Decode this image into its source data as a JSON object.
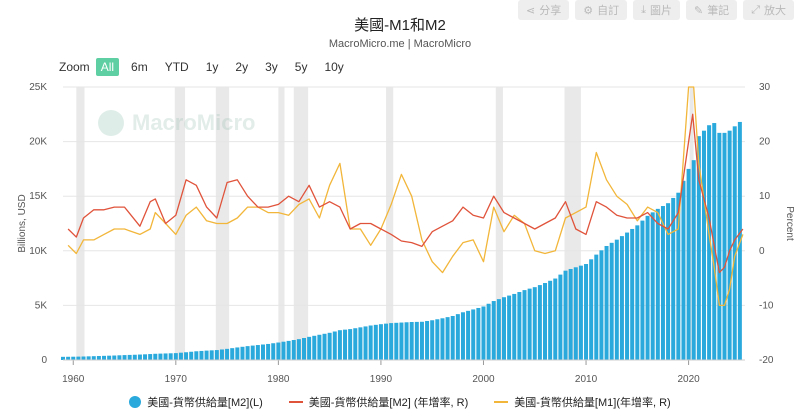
{
  "title": "美國-M1和M2",
  "subtitle": "MacroMicro.me | MacroMicro",
  "toolbar": [
    {
      "icon": "share-icon",
      "glyph": "⋖",
      "label": "分享"
    },
    {
      "icon": "settings-icon",
      "glyph": "⚙",
      "label": "自訂"
    },
    {
      "icon": "download-icon",
      "glyph": "⤓",
      "label": "圖片"
    },
    {
      "icon": "edit-icon",
      "glyph": "✎",
      "label": "筆記"
    },
    {
      "icon": "expand-icon",
      "glyph": "⤢",
      "label": "放大"
    }
  ],
  "zoom": {
    "label": "Zoom",
    "options": [
      "All",
      "6m",
      "YTD",
      "1y",
      "2y",
      "3y",
      "5y",
      "10y"
    ],
    "selected": "All"
  },
  "watermark": "MacroMicro",
  "colors": {
    "m2_bar": "#2aa9dc",
    "m2_yoy": "#e0533b",
    "m1_yoy": "#f2b63a",
    "recession": "#e9e9e9",
    "accent": "#5ecfa2"
  },
  "chart_data": {
    "type": "bar+line",
    "title": "美國-M1和M2",
    "subtitle": "MacroMicro.me | MacroMicro",
    "xlim": [
      1959,
      2025.5
    ],
    "x_ticks": [
      "1960",
      "1970",
      "1980",
      "1990",
      "2000",
      "2010",
      "2020"
    ],
    "left_axis": {
      "label": "Billions, USD",
      "lim": [
        0,
        25000
      ],
      "ticks": [
        "0",
        "5K",
        "10K",
        "15K",
        "20K",
        "25K"
      ]
    },
    "right_axis": {
      "label": "Percent",
      "lim": [
        -20,
        30
      ],
      "ticks": [
        "-20",
        "-10",
        "0",
        "10",
        "20",
        "30"
      ]
    },
    "recessions": [
      [
        1960.3,
        1961.1
      ],
      [
        1969.9,
        1970.9
      ],
      [
        1973.9,
        1975.2
      ],
      [
        1980.0,
        1980.6
      ],
      [
        1981.5,
        1982.9
      ],
      [
        1990.5,
        1991.2
      ],
      [
        2001.2,
        2001.9
      ],
      [
        2007.9,
        2009.5
      ],
      [
        2020.1,
        2020.4
      ]
    ],
    "series": [
      {
        "name": "美國-貨幣供給量[M2](L)",
        "type": "bar",
        "axis": "left",
        "x": [
          1959,
          1960,
          1961,
          1962,
          1963,
          1964,
          1965,
          1966,
          1967,
          1968,
          1969,
          1970,
          1971,
          1972,
          1973,
          1974,
          1975,
          1976,
          1977,
          1978,
          1979,
          1980,
          1981,
          1982,
          1983,
          1984,
          1985,
          1986,
          1987,
          1988,
          1989,
          1990,
          1991,
          1992,
          1993,
          1994,
          1995,
          1996,
          1997,
          1998,
          1999,
          2000,
          2001,
          2002,
          2003,
          2004,
          2005,
          2006,
          2007,
          2008,
          2009,
          2010,
          2011,
          2012,
          2013,
          2014,
          2015,
          2016,
          2017,
          2018,
          2019,
          2020,
          2020.5,
          2021,
          2022,
          2022.5,
          2023,
          2023.5,
          2024,
          2024.5,
          2025
        ],
        "values": [
          290,
          300,
          320,
          350,
          380,
          410,
          450,
          480,
          520,
          570,
          600,
          630,
          710,
          800,
          860,
          910,
          1020,
          1150,
          1270,
          1370,
          1470,
          1600,
          1750,
          1910,
          2120,
          2310,
          2490,
          2730,
          2830,
          2990,
          3160,
          3280,
          3380,
          3430,
          3480,
          3500,
          3640,
          3820,
          4030,
          4370,
          4630,
          4900,
          5400,
          5750,
          6050,
          6400,
          6670,
          7050,
          7460,
          8180,
          8490,
          8790,
          9650,
          10440,
          11020,
          11670,
          12330,
          13200,
          13840,
          14360,
          15320,
          17500,
          18300,
          20500,
          21500,
          21700,
          20800,
          20800,
          21000,
          21400,
          21800
        ]
      },
      {
        "name": "美國-貨幣供給量[M2] (年增率, R)",
        "type": "line",
        "axis": "right",
        "x": [
          1959.5,
          1960.3,
          1961,
          1962,
          1963,
          1964,
          1965,
          1966.5,
          1967.5,
          1968,
          1969,
          1970,
          1971,
          1972,
          1973,
          1974,
          1975,
          1976,
          1977,
          1978,
          1979,
          1980,
          1981,
          1982,
          1983,
          1984,
          1985,
          1986,
          1987,
          1988,
          1989,
          1990,
          1991,
          1992,
          1993,
          1994,
          1995,
          1996,
          1997,
          1998,
          1999,
          2000,
          2001,
          2002,
          2003,
          2004,
          2005,
          2006,
          2007,
          2008,
          2009,
          2010,
          2011,
          2012,
          2013,
          2014,
          2015,
          2016,
          2017,
          2018,
          2019,
          2020,
          2020.4,
          2021,
          2022,
          2022.5,
          2023,
          2023.5,
          2024,
          2024.5,
          2025.3
        ],
        "values": [
          4,
          2.5,
          6,
          7.5,
          7.5,
          8,
          8,
          4.5,
          9,
          9.5,
          5,
          6.5,
          13,
          12,
          8,
          6,
          12.5,
          13,
          10,
          8,
          8,
          8.5,
          10,
          9,
          12,
          8,
          9,
          8,
          4,
          5,
          5,
          4,
          3,
          1.8,
          1.5,
          0.8,
          3.5,
          4.5,
          5.5,
          8,
          6.5,
          6,
          10,
          7,
          6,
          5,
          4,
          5,
          6,
          9,
          4,
          3,
          9,
          8,
          6.5,
          6,
          6,
          7,
          5,
          4,
          7,
          20,
          25,
          13,
          6,
          1,
          -4,
          -3,
          0,
          2,
          4
        ]
      },
      {
        "name": "美國-貨幣供給量[M1](年增率, R)",
        "type": "line",
        "axis": "right",
        "x": [
          1959.5,
          1960.3,
          1961,
          1962,
          1963,
          1964,
          1965,
          1966.5,
          1967.5,
          1968,
          1969,
          1970,
          1971,
          1972,
          1973,
          1974,
          1975,
          1976,
          1977,
          1978,
          1979,
          1980,
          1981,
          1982,
          1983,
          1984,
          1985,
          1986,
          1987,
          1988,
          1989,
          1990,
          1991,
          1992,
          1993,
          1994,
          1995,
          1996,
          1997,
          1998,
          1999,
          2000,
          2001,
          2002,
          2003,
          2004,
          2005,
          2006,
          2007,
          2008,
          2009,
          2010,
          2011,
          2012,
          2013,
          2014,
          2015,
          2016,
          2017,
          2018,
          2019,
          2020,
          2020.5,
          2021,
          2022,
          2022.5,
          2023,
          2023.5,
          2024,
          2024.5,
          2025.3
        ],
        "values": [
          1,
          -0.5,
          2,
          2,
          3,
          4,
          4,
          3,
          4,
          7,
          5,
          3,
          6.5,
          8,
          5.5,
          5,
          5,
          6,
          8,
          8,
          7,
          7,
          6.5,
          8.5,
          9.5,
          6,
          12,
          16,
          4,
          4,
          1,
          4,
          8.5,
          14,
          10,
          2,
          -2,
          -4,
          -1,
          1.5,
          2,
          -2,
          8,
          3.5,
          6.5,
          5,
          0,
          -0.5,
          0,
          6,
          7,
          8,
          18,
          13,
          10,
          8.5,
          5.5,
          8,
          7,
          3,
          4,
          30,
          30,
          16,
          3,
          -3,
          -10,
          -10,
          -7,
          -1,
          3
        ]
      }
    ],
    "legend": [
      {
        "label": "美國-貨幣供給量[M2](L)",
        "marker": "dot"
      },
      {
        "label": "美國-貨幣供給量[M2] (年增率, R)",
        "marker": "line"
      },
      {
        "label": "美國-貨幣供給量[M1](年增率, R)",
        "marker": "line"
      }
    ],
    "legend_position": "bottom",
    "grid": true
  }
}
